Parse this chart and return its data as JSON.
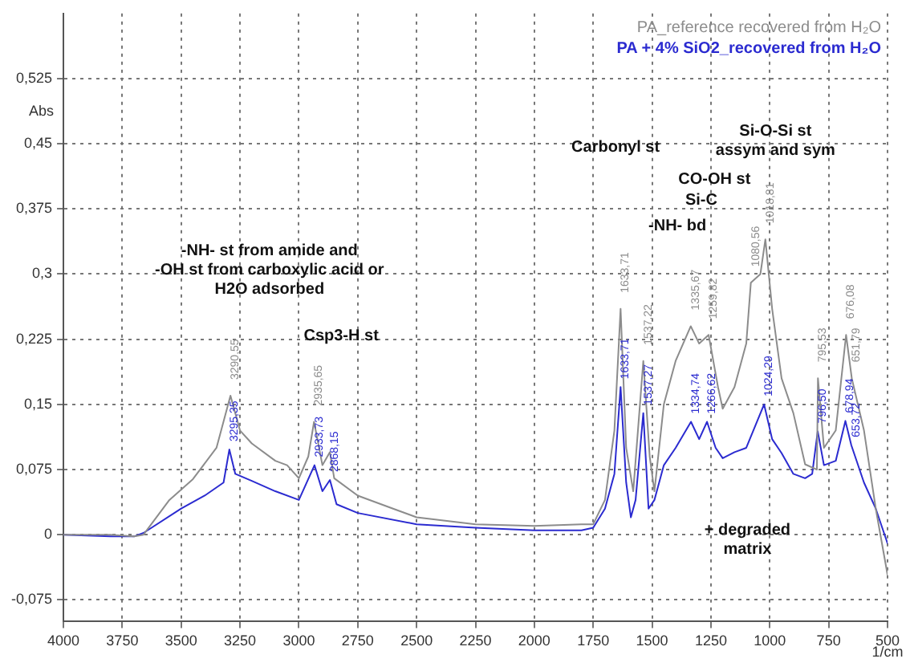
{
  "chart_data": {
    "type": "line",
    "xlabel": "1/cm",
    "ylabel": "Abs",
    "xlim": [
      4000,
      500
    ],
    "xticks": [
      4000,
      3750,
      3500,
      3250,
      3000,
      2750,
      2500,
      2250,
      2000,
      1750,
      1500,
      1250,
      1000,
      750,
      500
    ],
    "ylim": [
      -0.1,
      0.6
    ],
    "yticks": [
      {
        "value": -0.075,
        "label": "-0,075"
      },
      {
        "value": 0,
        "label": "0"
      },
      {
        "value": 0.075,
        "label": "0,075"
      },
      {
        "value": 0.15,
        "label": "0,15"
      },
      {
        "value": 0.225,
        "label": "0,225"
      },
      {
        "value": 0.3,
        "label": "0,3"
      },
      {
        "value": 0.375,
        "label": "0,375"
      },
      {
        "value": 0.45,
        "label": "0,45"
      },
      {
        "value": 0.525,
        "label": "0,525"
      }
    ],
    "grid": true,
    "legend": "top right",
    "marker": "none",
    "line_style": "solid",
    "series": [
      {
        "name": "PA_reference recovered from H₂O",
        "color": "#8c8c8c",
        "x": [
          4000,
          3800,
          3700,
          3660,
          3550,
          3450,
          3350,
          3290.55,
          3250,
          3200,
          3100,
          3050,
          3000,
          2960,
          2935.65,
          2900,
          2868.15,
          2850,
          2750,
          2600,
          2500,
          2250,
          2000,
          1800,
          1750,
          1700,
          1660,
          1633.71,
          1610,
          1580,
          1560,
          1537.22,
          1510,
          1490,
          1450,
          1400,
          1335.67,
          1300,
          1259.82,
          1220,
          1200,
          1150,
          1100,
          1080.56,
          1040,
          1018.81,
          990,
          950,
          900,
          850,
          800,
          795.53,
          770,
          720,
          676.08,
          651.79,
          600,
          550,
          500
        ],
        "values": [
          0,
          0,
          -0.002,
          0,
          0.04,
          0.064,
          0.1,
          0.16,
          0.12,
          0.105,
          0.085,
          0.08,
          0.065,
          0.09,
          0.13,
          0.08,
          0.095,
          0.065,
          0.045,
          0.03,
          0.02,
          0.012,
          0.01,
          0.012,
          0.012,
          0.04,
          0.12,
          0.26,
          0.1,
          0.05,
          0.12,
          0.2,
          0.09,
          0.05,
          0.15,
          0.2,
          0.24,
          0.22,
          0.23,
          0.17,
          0.145,
          0.17,
          0.22,
          0.29,
          0.3,
          0.34,
          0.26,
          0.18,
          0.14,
          0.081,
          0.075,
          0.18,
          0.1,
          0.12,
          0.23,
          0.18,
          0.12,
          0.03,
          -0.046
        ]
      },
      {
        "name": "PA + 4% SiO2_recovered from H₂O",
        "color": "#2b2bd0",
        "x": [
          4000,
          3800,
          3700,
          3660,
          3500,
          3400,
          3320,
          3295.35,
          3270,
          3200,
          3100,
          3000,
          2933.73,
          2900,
          2868.15,
          2840,
          2750,
          2500,
          2250,
          2000,
          1800,
          1750,
          1700,
          1660,
          1633.71,
          1610,
          1590,
          1570,
          1537.27,
          1515,
          1490,
          1450,
          1400,
          1334.74,
          1300,
          1266.62,
          1230,
          1200,
          1150,
          1100,
          1024.29,
          990,
          950,
          900,
          850,
          820,
          796.5,
          770,
          720,
          678.94,
          653.72,
          600,
          550,
          500
        ],
        "values": [
          0,
          -0.002,
          -0.002,
          0.002,
          0.03,
          0.045,
          0.06,
          0.098,
          0.07,
          0.062,
          0.05,
          0.04,
          0.08,
          0.05,
          0.063,
          0.035,
          0.025,
          0.012,
          0.008,
          0.005,
          0.005,
          0.008,
          0.03,
          0.07,
          0.17,
          0.06,
          0.02,
          0.04,
          0.14,
          0.03,
          0.04,
          0.08,
          0.1,
          0.13,
          0.11,
          0.13,
          0.1,
          0.088,
          0.095,
          0.1,
          0.15,
          0.11,
          0.094,
          0.07,
          0.065,
          0.07,
          0.119,
          0.08,
          0.085,
          0.131,
          0.103,
          0.06,
          0.03,
          -0.01
        ]
      }
    ],
    "annotations": [
      "-NH- st from amide and\n-OH st from carboxylic acid or\nH2O adsorbed",
      "Csp3-H st",
      "Carbonyl st",
      "Si-O-Si st\nassym and sym",
      "CO-OH st",
      "Si-C",
      "-NH- bd",
      "+ degraded\nmatrix",
      {
        "text": "3290,55",
        "x": 3290.55,
        "y": 0.16
      },
      {
        "text": "2935,65",
        "x": 2935.65,
        "y": 0.13
      },
      {
        "text": "1633,71",
        "x": 1633.71,
        "y": 0.26
      },
      {
        "text": "1537,22",
        "x": 1537.22,
        "y": 0.2
      },
      {
        "text": "1335,67",
        "x": 1335.67,
        "y": 0.24
      },
      {
        "text": "1259,82",
        "x": 1259.82,
        "y": 0.23
      },
      {
        "text": "1080,56",
        "x": 1080.56,
        "y": 0.29
      },
      {
        "text": "1018,81",
        "x": 1018.81,
        "y": 0.34
      },
      {
        "text": "795,53",
        "x": 795.53,
        "y": 0.18
      },
      {
        "text": "676,08",
        "x": 676.08,
        "y": 0.23
      },
      {
        "text": "651,79",
        "x": 651.79,
        "y": 0.18
      },
      {
        "text": "3295,35",
        "x": 3295.35,
        "y": 0.098
      },
      {
        "text": "2933,73",
        "x": 2933.73,
        "y": 0.08
      },
      {
        "text": "2868,15",
        "x": 2868.15,
        "y": 0.063
      },
      {
        "text": "1633,71",
        "x": 1633.71,
        "y": 0.17
      },
      {
        "text": "1537,27",
        "x": 1537.27,
        "y": 0.14
      },
      {
        "text": "1334,74",
        "x": 1334.74,
        "y": 0.13
      },
      {
        "text": "1266,62",
        "x": 1266.62,
        "y": 0.13
      },
      {
        "text": "1024,29",
        "x": 1024.29,
        "y": 0.15
      },
      {
        "text": "796,50",
        "x": 796.5,
        "y": 0.119
      },
      {
        "text": "678,94",
        "x": 678.94,
        "y": 0.131
      },
      {
        "text": "653,72",
        "x": 653.72,
        "y": 0.103
      }
    ]
  }
}
